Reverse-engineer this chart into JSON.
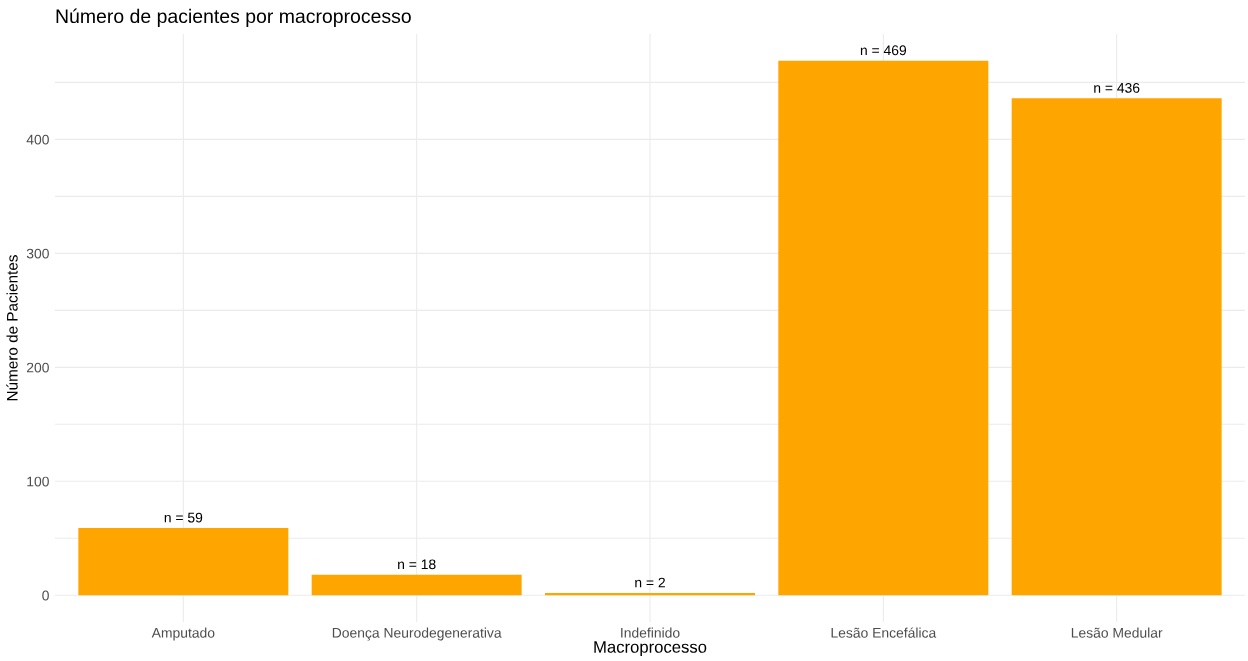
{
  "chart_data": {
    "type": "bar",
    "title": "Número de pacientes por macroprocesso",
    "xlabel": "Macroprocesso",
    "ylabel": "Número de Pacientes",
    "categories": [
      "Amputado",
      "Doença Neurodegenerativa",
      "Indefinido",
      "Lesão Encefálica",
      "Lesão Medular"
    ],
    "values": [
      59,
      18,
      2,
      469,
      436
    ],
    "value_labels": [
      "n = 59",
      "n = 18",
      "n = 2",
      "n = 469",
      "n = 436"
    ],
    "color": "#ffa500",
    "ylim": [
      -23.45,
      492.45
    ],
    "yticks": [
      0,
      {
        "value": 50,
        "label": null
      },
      100,
      {
        "value": 150,
        "label": null
      },
      200,
      {
        "value": 250,
        "label": null
      },
      300,
      {
        "value": 350,
        "label": null
      },
      400,
      {
        "value": 450,
        "label": null
      }
    ],
    "grid": true
  }
}
